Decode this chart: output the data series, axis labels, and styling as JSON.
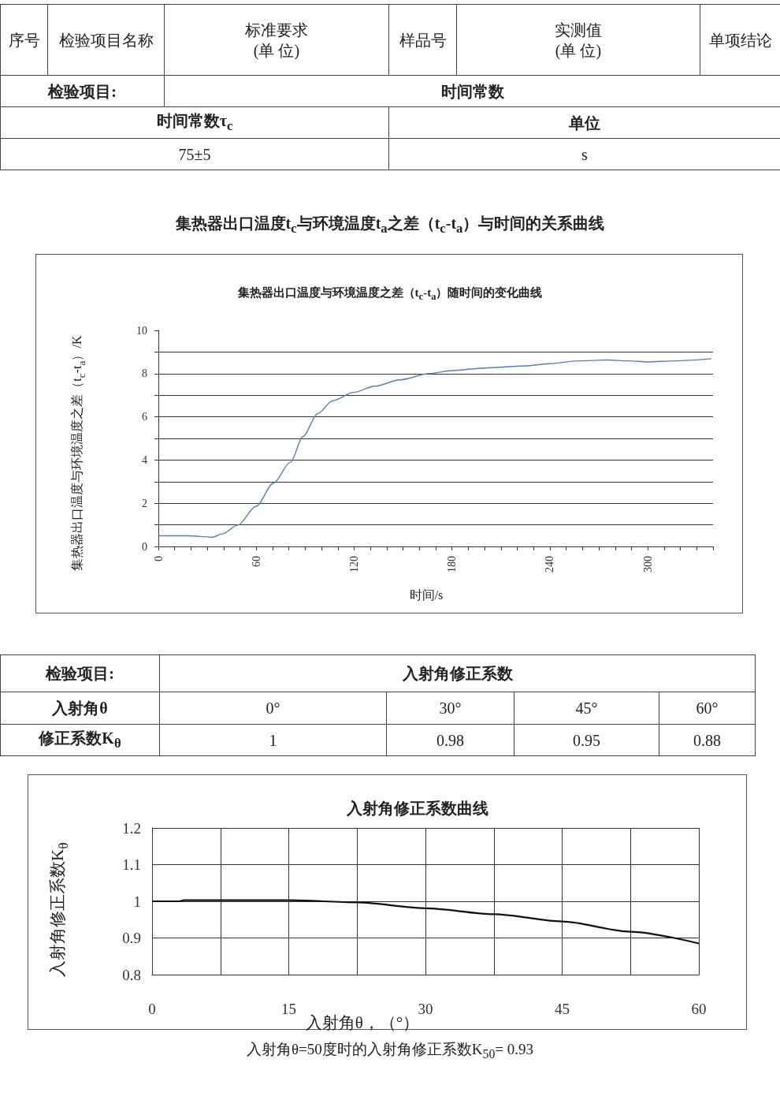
{
  "chart_data": [
    {
      "type": "other",
      "annotations": [
        "序号",
        "检验项目名称",
        "标准要求\n(单 位)",
        "样品号",
        "实测值\n(单 位)",
        "单项结论",
        "检验项目:",
        "时间常数",
        "时间常数τ$_{c}$",
        "单位",
        "75±5",
        "s"
      ]
    },
    {
      "type": "line",
      "title": "集热器出口温度t$_{c}$与环境温度t$_{a}$之差（t$_{c}$-t$_{a}$）与时间的关系曲线",
      "subtitle": "集热器出口温度与环境温度之差（t$_{c}$-t$_{a}$）随时间的变化曲线",
      "xlabel": "时间/s",
      "ylabel": "集热器出口温度与环境温度之差（t$_{c}$-t$_{a}$）/K",
      "color": "#5b7db3",
      "x": [
        0,
        18.7,
        33,
        39.4,
        48.5,
        60,
        70.5,
        81,
        88.6,
        97.7,
        106.8,
        119.7,
        132.7,
        148,
        166,
        180,
        200,
        226,
        240,
        257,
        275,
        288,
        300,
        317,
        339
      ],
      "values": [
        0.49,
        0.49,
        0.43,
        0.59,
        0.98,
        1.86,
        2.93,
        3.9,
        5.08,
        6.15,
        6.74,
        7.13,
        7.42,
        7.71,
        8.0,
        8.14,
        8.26,
        8.36,
        8.46,
        8.59,
        8.63,
        8.59,
        8.54,
        8.59,
        8.69
      ],
      "xlim": [
        0,
        340
      ],
      "xticks": [
        0,
        {
          "value": 10,
          "label": null
        },
        {
          "value": 20,
          "label": null
        },
        {
          "value": 30,
          "label": null
        },
        {
          "value": 40,
          "label": null
        },
        {
          "value": 50,
          "label": null
        },
        60,
        {
          "value": 70,
          "label": null
        },
        {
          "value": 80,
          "label": null
        },
        {
          "value": 90,
          "label": null
        },
        {
          "value": 100,
          "label": null
        },
        {
          "value": 110,
          "label": null
        },
        120,
        {
          "value": 130,
          "label": null
        },
        {
          "value": 140,
          "label": null
        },
        {
          "value": 150,
          "label": null
        },
        {
          "value": 160,
          "label": null
        },
        {
          "value": 170,
          "label": null
        },
        180,
        {
          "value": 190,
          "label": null
        },
        {
          "value": 200,
          "label": null
        },
        {
          "value": 210,
          "label": null
        },
        {
          "value": 220,
          "label": null
        },
        {
          "value": 230,
          "label": null
        },
        240,
        {
          "value": 250,
          "label": null
        },
        {
          "value": 260,
          "label": null
        },
        {
          "value": 270,
          "label": null
        },
        {
          "value": 280,
          "label": null
        },
        {
          "value": 290,
          "label": null
        },
        300,
        {
          "value": 310,
          "label": null
        },
        {
          "value": 320,
          "label": null
        },
        {
          "value": 330,
          "label": null
        },
        {
          "value": 340,
          "label": null
        }
      ],
      "ylim": [
        0,
        10
      ],
      "yticks": [
        0,
        {
          "value": 1,
          "label": null
        },
        2,
        {
          "value": 3,
          "label": null
        },
        4,
        {
          "value": 5,
          "label": null
        },
        6,
        {
          "value": 7,
          "label": null
        },
        8,
        {
          "value": 9,
          "label": null
        },
        10
      ],
      "grid": "y"
    },
    {
      "type": "other",
      "annotations": [
        "检验项目:",
        "入射角修正系数",
        "入射角θ",
        "0°",
        "30°",
        "45°",
        "60°",
        "修正系数K$_{θ}$",
        "1",
        "0.98",
        "0.95",
        "0.88"
      ]
    },
    {
      "type": "line",
      "title": "入射角修正系数曲线",
      "xlabel": "入射角θ，（°）",
      "ylabel": "入射角修正系数K$_{θ}$",
      "color": "#111111",
      "x": [
        0,
        3,
        3.5,
        15,
        22.5,
        30,
        37.5,
        45,
        52.5,
        60
      ],
      "values": [
        1.0,
        1.0,
        1.003,
        1.003,
        0.997,
        0.981,
        0.965,
        0.945,
        0.917,
        0.885
      ],
      "xlim": [
        0,
        60
      ],
      "xticks": [
        0,
        {
          "value": 7.5,
          "label": null
        },
        15,
        {
          "value": 22.5,
          "label": null
        },
        30,
        {
          "value": 37.5,
          "label": null
        },
        45,
        {
          "value": 52.5,
          "label": null
        },
        60
      ],
      "ylim": [
        0.8,
        1.2
      ],
      "yticks": [
        0.8,
        0.9,
        1,
        1.1,
        1.2
      ],
      "grid": true,
      "annotations": [
        "入射角θ=50度时的入射角修正系数K$_{50}$= 0.93"
      ]
    }
  ]
}
